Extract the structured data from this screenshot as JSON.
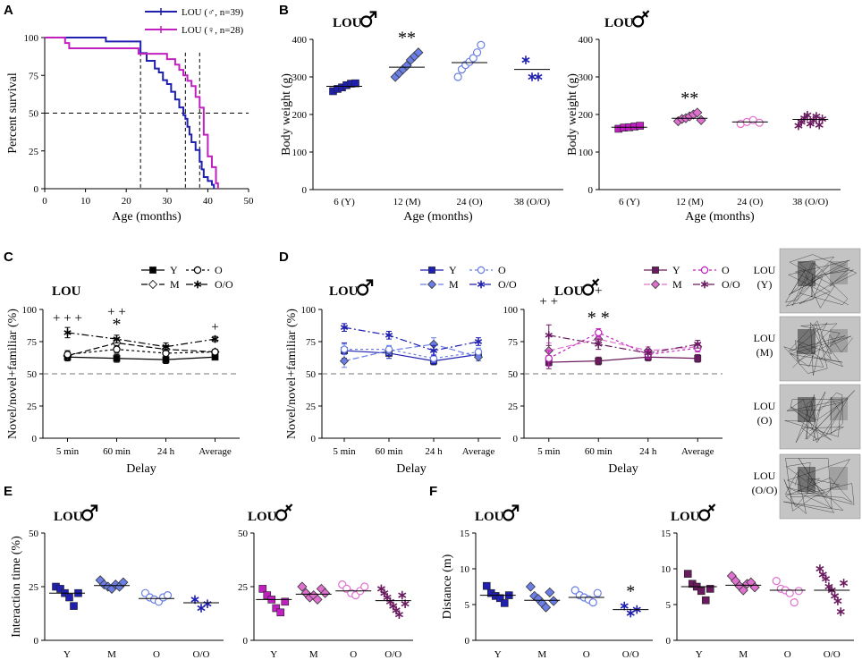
{
  "colors": {
    "blue": "#1f1fb0",
    "blue_light": "#6a7ee6",
    "magenta": "#c020c0",
    "purple": "#6a1a5e",
    "pink": "#e070d0",
    "gray_bg": "#c4c4c4"
  },
  "panel_labels": [
    "A",
    "B",
    "C",
    "D",
    "E",
    "F"
  ],
  "chart_data": [
    {
      "id": "A",
      "type": "line",
      "title": "",
      "xlabel": "Age (months)",
      "ylabel": "Percent survival",
      "xlim": [
        0,
        50
      ],
      "ylim": [
        0,
        100
      ],
      "xticks": [
        "0",
        "10",
        "20",
        "30",
        "40",
        "50"
      ],
      "yticks": [
        "0",
        "25",
        "50",
        "75",
        "100"
      ],
      "median_line": 50,
      "medians": [
        23.5,
        34.5,
        38
      ],
      "series": [
        {
          "name": "LOU (♂, n=39)",
          "color_key": "blue",
          "x": [
            0,
            12,
            15,
            23.5,
            25,
            27,
            28,
            29,
            30,
            31,
            32,
            33,
            34,
            34.5,
            35,
            35.5,
            36,
            37,
            38,
            38.5,
            39,
            40,
            41,
            41.5
          ],
          "y": [
            100,
            100,
            97.4,
            89.7,
            84.6,
            79.5,
            76.9,
            71.8,
            69.2,
            64.1,
            59,
            53.8,
            48.7,
            46.2,
            41,
            35.9,
            30.8,
            25.6,
            17.9,
            12.8,
            7.7,
            5.1,
            2.6,
            0
          ]
        },
        {
          "name": "LOU (♀, n=28)",
          "color_key": "magenta",
          "x": [
            0,
            3,
            5,
            6,
            22,
            23,
            30,
            32,
            33,
            34,
            35,
            36,
            37,
            38,
            39,
            40,
            41,
            42,
            42.5
          ],
          "y": [
            100,
            100,
            96.4,
            92.9,
            92.9,
            89.3,
            85.7,
            82.1,
            78.6,
            75,
            71.4,
            67.9,
            60.7,
            53.6,
            35.7,
            21.4,
            14.3,
            3.6,
            0
          ]
        }
      ]
    },
    {
      "id": "B1",
      "type": "scatter",
      "title": "LOU ♂",
      "xlabel": "Age (months)",
      "ylabel": "Body weight (g)",
      "ylim": [
        0,
        400
      ],
      "yticks": [
        "0",
        "100",
        "200",
        "300",
        "400"
      ],
      "categories": [
        "6 (Y)",
        "12 (M)",
        "24 (O)",
        "38 (O/O)"
      ],
      "marker": [
        "square",
        "diamond",
        "circle",
        "star"
      ],
      "color_keys": [
        "blue",
        "blue_light",
        "blue_light",
        "blue"
      ],
      "filled": [
        true,
        true,
        false,
        true
      ],
      "means": [
        275,
        326,
        338,
        320
      ],
      "points": [
        [
          262,
          268,
          272,
          278,
          282,
          283
        ],
        [
          300,
          310,
          320,
          330,
          345,
          355,
          365
        ],
        [
          300,
          320,
          332,
          340,
          350,
          365,
          385
        ],
        [
          345,
          300,
          300
        ]
      ],
      "annotations": [
        {
          "category": 1,
          "text": "**"
        }
      ]
    },
    {
      "id": "B2",
      "type": "scatter",
      "title": "LOU ♀",
      "xlabel": "Age (months)",
      "ylabel": "Body weight (g)",
      "ylim": [
        0,
        400
      ],
      "yticks": [
        "0",
        "100",
        "200",
        "300",
        "400"
      ],
      "categories": [
        "6 (Y)",
        "12 (M)",
        "24 (O)",
        "38 (O/O)"
      ],
      "marker": [
        "square",
        "diamond",
        "circle",
        "star"
      ],
      "color_keys": [
        "magenta",
        "pink",
        "pink",
        "purple"
      ],
      "filled": [
        true,
        true,
        false,
        true
      ],
      "means": [
        166,
        190,
        180,
        187
      ],
      "points": [
        [
          162,
          165,
          166,
          168,
          170
        ],
        [
          182,
          188,
          190,
          195,
          200,
          205,
          185
        ],
        [
          175,
          180,
          185,
          178
        ],
        [
          170,
          180,
          190,
          198,
          175,
          185,
          195,
          172,
          188
        ]
      ],
      "annotations": [
        {
          "category": 1,
          "text": "**"
        }
      ]
    },
    {
      "id": "C",
      "type": "line",
      "title": "LOU",
      "xlabel": "Delay",
      "ylabel": "Novel/novel+familiar (%)",
      "ylim": [
        0,
        100
      ],
      "yticks": [
        "0",
        "25",
        "50",
        "75",
        "100"
      ],
      "categories": [
        "5 min",
        "60 min",
        "24 h",
        "Average"
      ],
      "chance": 50,
      "legend": [
        "Y",
        "O",
        "M",
        "O/O"
      ],
      "series": [
        {
          "name": "Y",
          "marker": "square",
          "filled": true,
          "dash": "",
          "color_key": "k",
          "values": [
            63,
            62,
            61,
            63
          ],
          "err": [
            3,
            3,
            3,
            2
          ]
        },
        {
          "name": "M",
          "marker": "diamond",
          "filled": false,
          "dash": "7,3",
          "color_key": "k",
          "values": [
            64,
            74,
            69,
            67
          ],
          "err": [
            3,
            3,
            3,
            2
          ]
        },
        {
          "name": "O",
          "marker": "circle",
          "filled": false,
          "dash": "3,3",
          "color_key": "k",
          "values": [
            65,
            69,
            66,
            67
          ],
          "err": [
            3,
            3,
            3,
            2
          ]
        },
        {
          "name": "O/O",
          "marker": "star",
          "filled": true,
          "dash": "8,3,2,3",
          "color_key": "k",
          "values": [
            82,
            77,
            71,
            77
          ],
          "err": [
            4,
            3,
            3,
            2
          ]
        }
      ],
      "annotations": [
        {
          "category": 0,
          "text": "+ + +",
          "level": 1
        },
        {
          "category": 1,
          "text": "+ +",
          "level": 2
        },
        {
          "category": 1,
          "text": "*",
          "level": 1
        },
        {
          "category": 3,
          "text": "+",
          "level": 1
        }
      ]
    },
    {
      "id": "D1",
      "type": "line",
      "title": "LOU ♂",
      "xlabel": "Delay",
      "ylabel": "Novel/novel+familiar (%)",
      "ylim": [
        0,
        100
      ],
      "yticks": [
        "0",
        "25",
        "50",
        "75",
        "100"
      ],
      "categories": [
        "5 min",
        "60 min",
        "24 h",
        "Average"
      ],
      "chance": 50,
      "legend": [
        "Y",
        "O",
        "M",
        "O/O"
      ],
      "series": [
        {
          "name": "Y",
          "marker": "square",
          "filled": true,
          "dash": "",
          "color_key": "blue",
          "values": [
            68,
            66,
            60,
            65
          ],
          "err": [
            6,
            4,
            3,
            3
          ]
        },
        {
          "name": "M",
          "marker": "diamond",
          "filled": true,
          "dash": "7,3",
          "color_key": "blue_light",
          "values": [
            60,
            68,
            73,
            63
          ],
          "err": [
            5,
            3,
            5,
            3
          ]
        },
        {
          "name": "O",
          "marker": "circle",
          "filled": false,
          "dash": "3,3",
          "color_key": "blue_light",
          "values": [
            69,
            69,
            62,
            67
          ],
          "err": [
            4,
            3,
            3,
            3
          ]
        },
        {
          "name": "O/O",
          "marker": "star",
          "filled": true,
          "dash": "8,3,2,3",
          "color_key": "blue",
          "values": [
            86,
            80,
            68,
            75
          ],
          "err": [
            3,
            3,
            4,
            3
          ]
        }
      ],
      "annotations": []
    },
    {
      "id": "D2",
      "type": "line",
      "title": "LOU ♀",
      "xlabel": "Delay",
      "ylabel": "",
      "ylim": [
        0,
        100
      ],
      "yticks": [
        "0",
        "25",
        "50",
        "75",
        "100"
      ],
      "categories": [
        "5 min",
        "60 min",
        "24 h",
        "Average"
      ],
      "chance": 50,
      "legend": [
        "Y",
        "O",
        "M",
        "O/O"
      ],
      "series": [
        {
          "name": "Y",
          "marker": "square",
          "filled": true,
          "dash": "",
          "color_key": "purple",
          "values": [
            59,
            60,
            63,
            62
          ],
          "err": [
            5,
            3,
            3,
            3
          ]
        },
        {
          "name": "M",
          "marker": "diamond",
          "filled": true,
          "dash": "7,3",
          "color_key": "pink",
          "values": [
            68,
            77,
            68,
            71
          ],
          "err": [
            6,
            3,
            3,
            3
          ]
        },
        {
          "name": "O",
          "marker": "circle",
          "filled": false,
          "dash": "3,3",
          "color_key": "magenta",
          "values": [
            62,
            82,
            65,
            70
          ],
          "err": [
            6,
            3,
            3,
            3
          ]
        },
        {
          "name": "O/O",
          "marker": "star",
          "filled": true,
          "dash": "8,3,2,3",
          "color_key": "purple",
          "values": [
            80,
            73,
            66,
            73
          ],
          "err": [
            8,
            4,
            3,
            3
          ]
        }
      ],
      "annotations": [
        {
          "category": 0,
          "text": "+ +",
          "level": 2
        },
        {
          "category": 1,
          "text": "+",
          "level": 3
        },
        {
          "category": 1,
          "text": "* *",
          "level": 1
        }
      ]
    },
    {
      "id": "E1",
      "type": "scatter",
      "title": "LOU ♂",
      "xlabel": "",
      "ylabel": "Interaction time (%)",
      "ylim": [
        0,
        50
      ],
      "yticks": [
        "0",
        "25",
        "50"
      ],
      "categories": [
        "Y",
        "M",
        "O",
        "O/O"
      ],
      "marker": [
        "square",
        "diamond",
        "circle",
        "star"
      ],
      "color_keys": [
        "blue",
        "blue_light",
        "blue_light",
        "blue"
      ],
      "filled": [
        true,
        true,
        false,
        true
      ],
      "means": [
        22,
        25.5,
        19.5,
        17.5
      ],
      "points": [
        [
          25,
          24,
          22,
          20,
          16,
          22
        ],
        [
          28,
          26,
          25,
          24,
          26,
          25,
          27
        ],
        [
          22,
          20,
          19,
          18,
          20,
          21
        ],
        [
          19,
          15,
          17
        ]
      ],
      "annotations": []
    },
    {
      "id": "E2",
      "type": "scatter",
      "title": "LOU ♀",
      "xlabel": "",
      "ylabel": "",
      "ylim": [
        0,
        50
      ],
      "yticks": [
        "0",
        "25",
        "50"
      ],
      "categories": [
        "Y",
        "M",
        "O",
        "O/O"
      ],
      "marker": [
        "square",
        "diamond",
        "circle",
        "star"
      ],
      "color_keys": [
        "magenta",
        "pink",
        "pink",
        "purple"
      ],
      "filled": [
        true,
        true,
        false,
        true
      ],
      "means": [
        19,
        21.5,
        23,
        18.5
      ],
      "points": [
        [
          24,
          21,
          19,
          15,
          13,
          18
        ],
        [
          25,
          22,
          20,
          21,
          19,
          24,
          22
        ],
        [
          26,
          24,
          22,
          21,
          23,
          25
        ],
        [
          24,
          22,
          20,
          18,
          16,
          14,
          12,
          21,
          17
        ]
      ],
      "annotations": []
    },
    {
      "id": "F1",
      "type": "scatter",
      "title": "LOU ♂",
      "xlabel": "",
      "ylabel": "Distance (m)",
      "ylim": [
        0,
        15
      ],
      "yticks": [
        "0",
        "5",
        "10",
        "15"
      ],
      "categories": [
        "Y",
        "M",
        "O",
        "O/O"
      ],
      "marker": [
        "square",
        "diamond",
        "circle",
        "star"
      ],
      "color_keys": [
        "blue",
        "blue_light",
        "blue_light",
        "blue"
      ],
      "filled": [
        true,
        true,
        false,
        true
      ],
      "means": [
        6.3,
        5.6,
        6.0,
        4.3
      ],
      "points": [
        [
          7.6,
          6.6,
          6.2,
          5.9,
          5.2,
          6.3
        ],
        [
          7.5,
          6.2,
          5.8,
          5.2,
          4.6,
          6.7,
          5.5
        ],
        [
          7.0,
          6.3,
          6.0,
          5.7,
          5.3,
          6.6
        ],
        [
          4.8,
          3.8,
          4.3
        ]
      ],
      "annotations": [
        {
          "category": 3,
          "text": "*"
        }
      ]
    },
    {
      "id": "F2",
      "type": "scatter",
      "title": "LOU ♀",
      "xlabel": "",
      "ylabel": "",
      "ylim": [
        0,
        15
      ],
      "yticks": [
        "0",
        "5",
        "10",
        "15"
      ],
      "categories": [
        "Y",
        "M",
        "O",
        "O/O"
      ],
      "marker": [
        "square",
        "diamond",
        "circle",
        "star"
      ],
      "color_keys": [
        "purple",
        "pink",
        "pink",
        "purple"
      ],
      "filled": [
        true,
        true,
        false,
        true
      ],
      "means": [
        7.5,
        7.7,
        7.0,
        7.0
      ],
      "points": [
        [
          9.3,
          7.9,
          7.5,
          6.9,
          5.6,
          7.2
        ],
        [
          9.0,
          8.3,
          7.6,
          7.0,
          7.9,
          8.1,
          7.4
        ],
        [
          8.3,
          7.2,
          7.0,
          6.6,
          5.3,
          6.9
        ],
        [
          10.0,
          9.2,
          8.6,
          7.5,
          7.0,
          6.2,
          5.5,
          4.0,
          8.0
        ]
      ],
      "annotations": []
    }
  ],
  "photos": {
    "labels": [
      "LOU\n(Y)",
      "LOU\n(M)",
      "LOU\n(O)",
      "LOU\n(O/O)"
    ],
    "label_lines": [
      [
        "LOU",
        "(Y)"
      ],
      [
        "LOU",
        "(M)"
      ],
      [
        "LOU",
        "(O)"
      ],
      [
        "LOU",
        "(O/O)"
      ]
    ]
  }
}
